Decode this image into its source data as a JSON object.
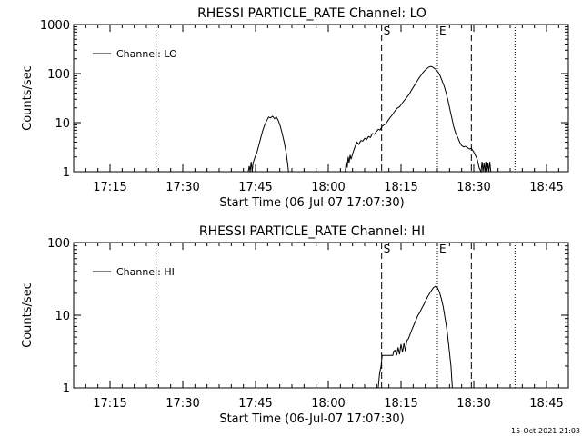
{
  "footer_date": "15-Oct-2021 21:03",
  "chart_data": [
    {
      "type": "line",
      "title": "RHESSI PARTICLE_RATE Channel: LO",
      "xlabel": "Start Time (06-Jul-07 17:07:30)",
      "ylabel": "Counts/sec",
      "y_scale": "log",
      "ylim": [
        1,
        1000
      ],
      "x_unit": "minutes after 17:07:30",
      "xlim": [
        0,
        102
      ],
      "x_ticks": [
        {
          "label": "17:15",
          "x": 7.5
        },
        {
          "label": "17:30",
          "x": 22.5
        },
        {
          "label": "17:45",
          "x": 37.5
        },
        {
          "label": "18:00",
          "x": 52.5
        },
        {
          "label": "18:15",
          "x": 67.5
        },
        {
          "label": "18:30",
          "x": 82.5
        },
        {
          "label": "18:45",
          "x": 97.5
        }
      ],
      "y_ticks": [
        {
          "label": "1",
          "y": 1
        },
        {
          "label": "10",
          "y": 10
        },
        {
          "label": "100",
          "y": 100
        },
        {
          "label": "1000",
          "y": 1000
        }
      ],
      "grid": false,
      "legend": {
        "position": "top-left",
        "entries": [
          "Channel: LO"
        ]
      },
      "markers": [
        {
          "x": 17.0,
          "style": "dotted",
          "label": ""
        },
        {
          "x": 63.5,
          "style": "dashed",
          "label": "S"
        },
        {
          "x": 75.0,
          "style": "dotted",
          "label": "E"
        },
        {
          "x": 82.0,
          "style": "dashed",
          "label": ""
        },
        {
          "x": 91.0,
          "style": "dotted",
          "label": ""
        }
      ],
      "series": [
        {
          "name": "Channel: LO",
          "points": [
            [
              36.0,
              1
            ],
            [
              36.2,
              1.3
            ],
            [
              36.4,
              1
            ],
            [
              36.6,
              1.6
            ],
            [
              36.8,
              1
            ],
            [
              37.0,
              1.5
            ],
            [
              37.4,
              2
            ],
            [
              37.8,
              2.5
            ],
            [
              38.2,
              3.5
            ],
            [
              38.6,
              5
            ],
            [
              39.0,
              7
            ],
            [
              39.4,
              9
            ],
            [
              39.8,
              11
            ],
            [
              40.2,
              13
            ],
            [
              40.6,
              12.5
            ],
            [
              41.0,
              13.5
            ],
            [
              41.4,
              12
            ],
            [
              41.8,
              13
            ],
            [
              42.2,
              11
            ],
            [
              42.6,
              8.5
            ],
            [
              43.0,
              6
            ],
            [
              43.4,
              4
            ],
            [
              43.8,
              2.5
            ],
            [
              44.1,
              1.5
            ],
            [
              44.3,
              1
            ],
            [
              56.0,
              1
            ],
            [
              56.2,
              1.6
            ],
            [
              56.4,
              1.2
            ],
            [
              56.6,
              2
            ],
            [
              56.8,
              1.5
            ],
            [
              57.0,
              2.2
            ],
            [
              57.2,
              1.8
            ],
            [
              57.5,
              2.3
            ],
            [
              58.0,
              3.2
            ],
            [
              58.4,
              4
            ],
            [
              58.8,
              3.6
            ],
            [
              59.2,
              4.3
            ],
            [
              59.6,
              4.2
            ],
            [
              60.0,
              4.8
            ],
            [
              60.4,
              4.5
            ],
            [
              60.8,
              5.2
            ],
            [
              61.2,
              5
            ],
            [
              61.6,
              6
            ],
            [
              62.0,
              5.8
            ],
            [
              62.4,
              6.5
            ],
            [
              62.8,
              7.3
            ],
            [
              63.2,
              7.1
            ],
            [
              63.6,
              8.4
            ],
            [
              64.0,
              9
            ],
            [
              64.4,
              9.6
            ],
            [
              64.8,
              11
            ],
            [
              65.2,
              12.5
            ],
            [
              65.6,
              14
            ],
            [
              66.0,
              16
            ],
            [
              66.4,
              18
            ],
            [
              66.8,
              20
            ],
            [
              67.2,
              21
            ],
            [
              67.6,
              24
            ],
            [
              68.0,
              27
            ],
            [
              68.4,
              30
            ],
            [
              68.8,
              34
            ],
            [
              69.2,
              38
            ],
            [
              69.6,
              45
            ],
            [
              70.0,
              52
            ],
            [
              70.4,
              60
            ],
            [
              70.8,
              70
            ],
            [
              71.2,
              80
            ],
            [
              71.6,
              92
            ],
            [
              72.0,
              104
            ],
            [
              72.4,
              115
            ],
            [
              72.8,
              126
            ],
            [
              73.2,
              135
            ],
            [
              73.6,
              140
            ],
            [
              74.0,
              136
            ],
            [
              74.4,
              127
            ],
            [
              74.8,
              118
            ],
            [
              75.2,
              105
            ],
            [
              75.6,
              88
            ],
            [
              76.0,
              70
            ],
            [
              76.4,
              55
            ],
            [
              76.8,
              40
            ],
            [
              77.2,
              28
            ],
            [
              77.6,
              18
            ],
            [
              78.0,
              12
            ],
            [
              78.4,
              8
            ],
            [
              78.8,
              6
            ],
            [
              79.2,
              5
            ],
            [
              79.6,
              4
            ],
            [
              80.0,
              3.4
            ],
            [
              80.4,
              3.2
            ],
            [
              80.8,
              3.3
            ],
            [
              81.2,
              3.1
            ],
            [
              81.6,
              2.9
            ],
            [
              82.0,
              3
            ],
            [
              82.4,
              2.6
            ],
            [
              82.8,
              2.2
            ],
            [
              83.2,
              1.8
            ],
            [
              83.6,
              1.2
            ],
            [
              84.0,
              1
            ],
            [
              84.2,
              1.6
            ],
            [
              84.4,
              1
            ],
            [
              84.6,
              1.5
            ],
            [
              84.8,
              1
            ],
            [
              85.0,
              1.6
            ],
            [
              85.2,
              1
            ],
            [
              85.4,
              1.5
            ],
            [
              85.6,
              1
            ],
            [
              85.8,
              1.6
            ],
            [
              86.0,
              1
            ]
          ]
        }
      ]
    },
    {
      "type": "line",
      "title": "RHESSI PARTICLE_RATE Channel: HI",
      "xlabel": "Start Time (06-Jul-07 17:07:30)",
      "ylabel": "Counts/sec",
      "y_scale": "log",
      "ylim": [
        1,
        100
      ],
      "x_unit": "minutes after 17:07:30",
      "xlim": [
        0,
        102
      ],
      "x_ticks": [
        {
          "label": "17:15",
          "x": 7.5
        },
        {
          "label": "17:30",
          "x": 22.5
        },
        {
          "label": "17:45",
          "x": 37.5
        },
        {
          "label": "18:00",
          "x": 52.5
        },
        {
          "label": "18:15",
          "x": 67.5
        },
        {
          "label": "18:30",
          "x": 82.5
        },
        {
          "label": "18:45",
          "x": 97.5
        }
      ],
      "y_ticks": [
        {
          "label": "1",
          "y": 1
        },
        {
          "label": "10",
          "y": 10
        },
        {
          "label": "100",
          "y": 100
        }
      ],
      "grid": false,
      "legend": {
        "position": "top-left",
        "entries": [
          "Channel: HI"
        ]
      },
      "markers": [
        {
          "x": 17.0,
          "style": "dotted",
          "label": ""
        },
        {
          "x": 63.5,
          "style": "dashed",
          "label": "S"
        },
        {
          "x": 75.0,
          "style": "dotted",
          "label": "E"
        },
        {
          "x": 82.0,
          "style": "dashed",
          "label": ""
        },
        {
          "x": 91.0,
          "style": "dotted",
          "label": ""
        }
      ],
      "series": [
        {
          "name": "Channel: HI",
          "points": [
            [
              62.8,
              1
            ],
            [
              63.1,
              1.6
            ],
            [
              63.4,
              2
            ],
            [
              63.6,
              2.8
            ],
            [
              64.0,
              2.8
            ],
            [
              64.6,
              2.8
            ],
            [
              65.2,
              2.8
            ],
            [
              65.8,
              2.8
            ],
            [
              66.0,
              3.2
            ],
            [
              66.3,
              3.3
            ],
            [
              66.6,
              2.8
            ],
            [
              66.9,
              3.6
            ],
            [
              67.2,
              2.9
            ],
            [
              67.5,
              4.0
            ],
            [
              67.8,
              3.1
            ],
            [
              68.1,
              4.1
            ],
            [
              68.4,
              3.2
            ],
            [
              68.7,
              4.5
            ],
            [
              69.0,
              4.7
            ],
            [
              69.4,
              5.5
            ],
            [
              69.8,
              6.5
            ],
            [
              70.2,
              7.5
            ],
            [
              70.6,
              8.6
            ],
            [
              71.0,
              10
            ],
            [
              71.4,
              11
            ],
            [
              71.8,
              12.5
            ],
            [
              72.2,
              14
            ],
            [
              72.6,
              16
            ],
            [
              73.0,
              18
            ],
            [
              73.4,
              20
            ],
            [
              73.8,
              22
            ],
            [
              74.2,
              24
            ],
            [
              74.6,
              25
            ],
            [
              75.0,
              24
            ],
            [
              75.4,
              21
            ],
            [
              75.8,
              17
            ],
            [
              76.2,
              13
            ],
            [
              76.6,
              9
            ],
            [
              77.0,
              6
            ],
            [
              77.4,
              3.5
            ],
            [
              77.8,
              2
            ],
            [
              78.0,
              1.2
            ],
            [
              78.1,
              1
            ]
          ]
        }
      ]
    }
  ]
}
